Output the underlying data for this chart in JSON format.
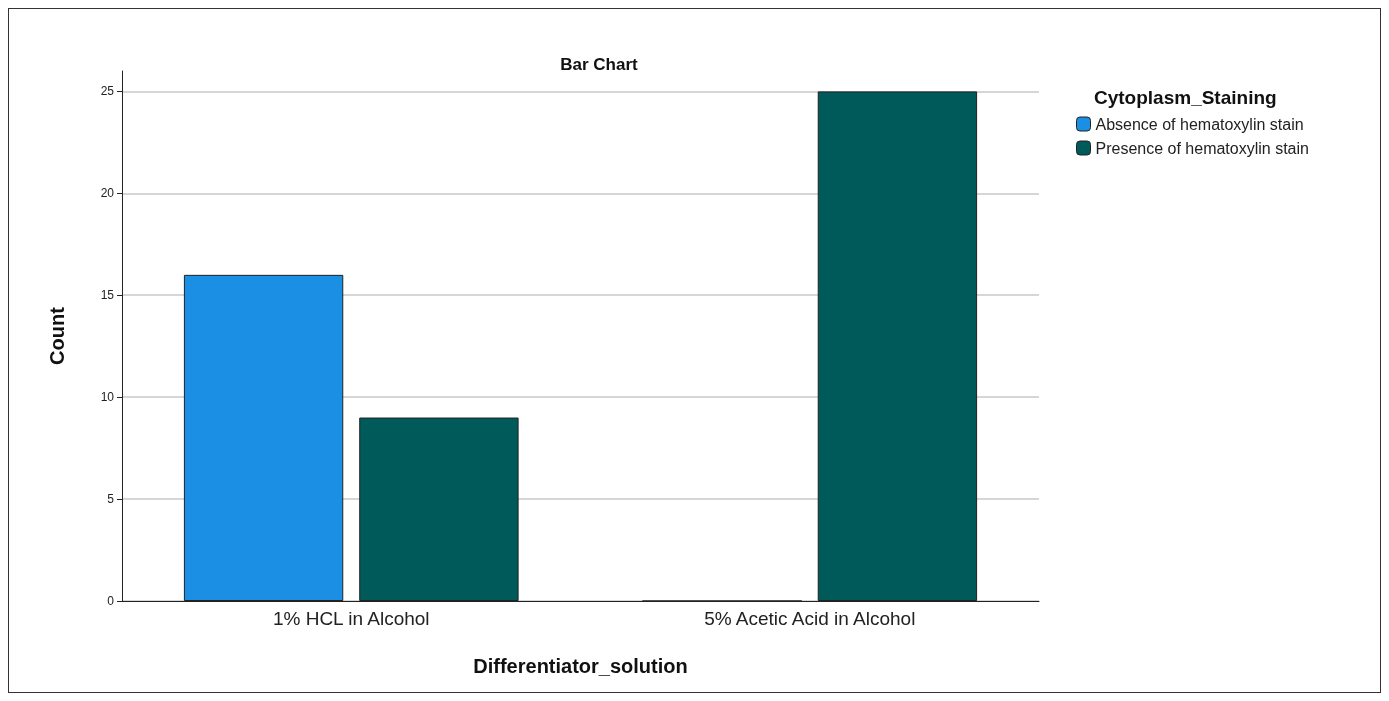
{
  "chart_data": {
    "type": "bar",
    "title": "Bar Chart",
    "xlabel": "Differentiator_solution",
    "ylabel": "Count",
    "legend_title": "Cytoplasm_Staining",
    "categories": [
      "1% HCL in Alcohol",
      "5% Acetic Acid in Alcohol"
    ],
    "series": [
      {
        "name": "Absence of hematoxylin stain",
        "color": "#1a8fe3",
        "values": [
          16,
          0
        ]
      },
      {
        "name": "Presence of hematoxylin stain",
        "color": "#005a5a",
        "values": [
          9,
          25
        ]
      }
    ],
    "ylim": [
      0,
      26
    ],
    "yticks": [
      0,
      5,
      10,
      15,
      20,
      25
    ],
    "grid": "y",
    "legend": "top right"
  }
}
